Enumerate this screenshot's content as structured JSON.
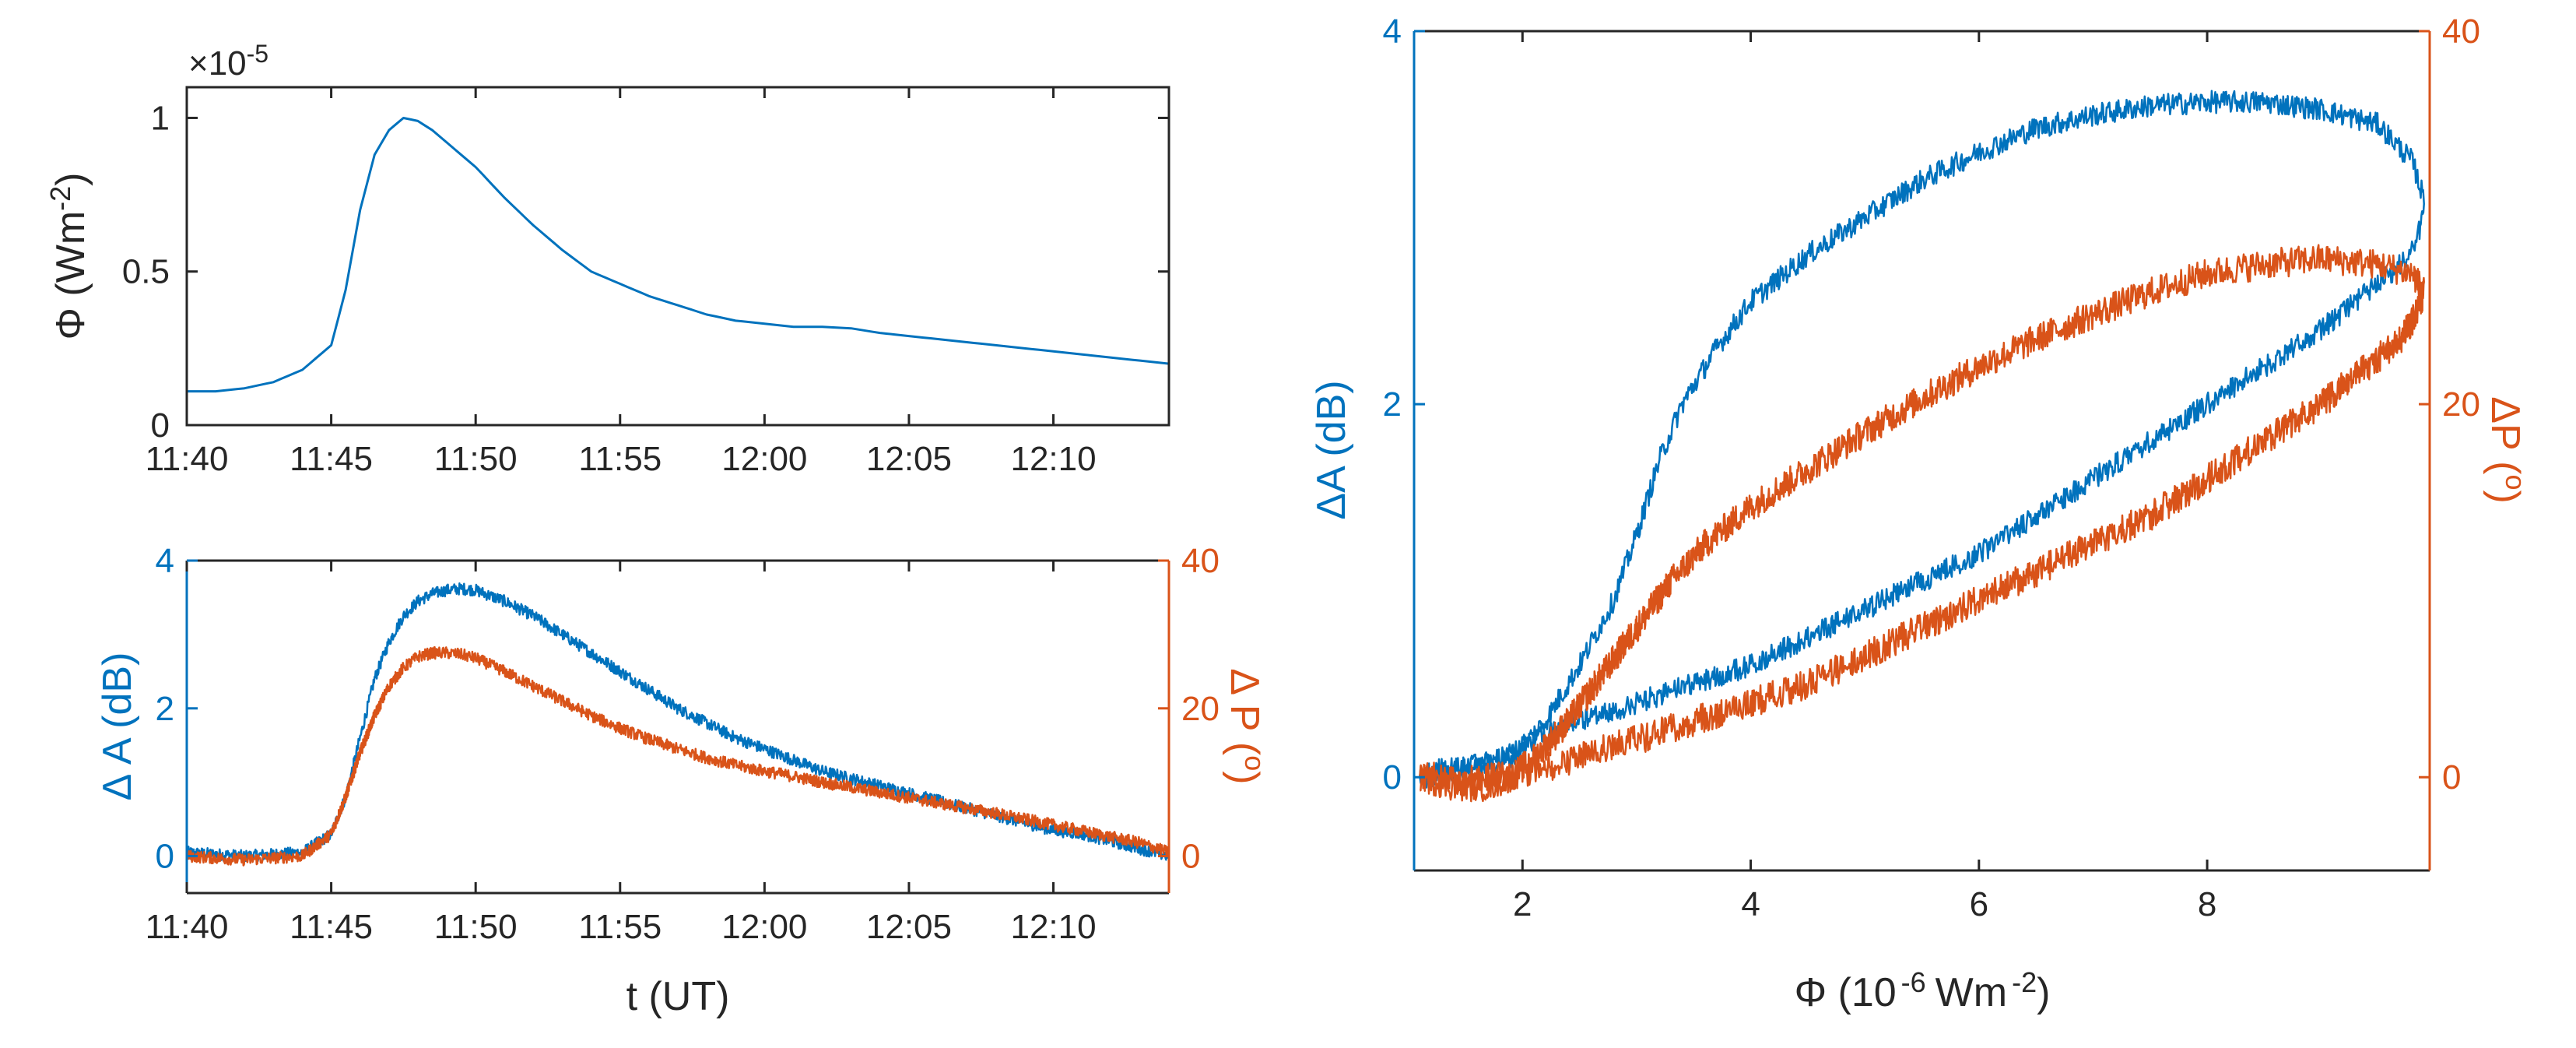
{
  "colors": {
    "blue": "#0072BD",
    "orange": "#D95319",
    "axis": "#262626"
  },
  "chart_data": [
    {
      "id": "flux-time",
      "type": "line",
      "xlabel": "",
      "ylabel_parts": [
        "Φ (Wm",
        "-2",
        ")"
      ],
      "exponent_label": [
        "×10",
        "-5"
      ],
      "x_tick_labels": [
        "11:40",
        "11:45",
        "11:50",
        "11:55",
        "12:00",
        "12:05",
        "12:10"
      ],
      "x_ticks_min": [
        0,
        5,
        10,
        15,
        20,
        25,
        30
      ],
      "xlim_min": [
        0,
        34
      ],
      "y_ticks": [
        0,
        0.5,
        1
      ],
      "y_tick_labels": [
        "0",
        "0.5",
        "1"
      ],
      "ylim": [
        0,
        1.1
      ],
      "grid": false,
      "series": [
        {
          "color": "blue",
          "x_min": [
            0,
            1,
            2,
            3,
            4,
            5,
            5.5,
            6,
            6.5,
            7,
            7.5,
            8,
            8.5,
            9,
            10,
            11,
            12,
            13,
            14,
            15,
            16,
            17,
            18,
            19,
            20,
            21,
            22,
            23,
            24,
            25,
            26,
            27,
            28,
            29,
            30,
            31,
            32,
            33,
            34
          ],
          "y": [
            0.11,
            0.11,
            0.12,
            0.14,
            0.18,
            0.26,
            0.44,
            0.7,
            0.88,
            0.96,
            1.0,
            0.99,
            0.96,
            0.92,
            0.84,
            0.74,
            0.65,
            0.57,
            0.5,
            0.46,
            0.42,
            0.39,
            0.36,
            0.34,
            0.33,
            0.32,
            0.32,
            0.315,
            0.3,
            0.29,
            0.28,
            0.27,
            0.26,
            0.25,
            0.24,
            0.23,
            0.22,
            0.21,
            0.2
          ]
        }
      ]
    },
    {
      "id": "diff-time",
      "type": "line",
      "xlabel": "t (UT)",
      "ylabel_left": "Δ A (dB)",
      "ylabel_right_parts": [
        "Δ P (",
        "o",
        ")"
      ],
      "x_tick_labels": [
        "11:40",
        "11:45",
        "11:50",
        "11:55",
        "12:00",
        "12:05",
        "12:10"
      ],
      "x_ticks_min": [
        0,
        5,
        10,
        15,
        20,
        25,
        30
      ],
      "xlim_min": [
        0,
        34
      ],
      "y_left_ticks": [
        0,
        2,
        4
      ],
      "y_left_tick_labels": [
        "0",
        "2",
        "4"
      ],
      "ylim_left": [
        -0.5,
        4
      ],
      "y_right_ticks": [
        0,
        20,
        40
      ],
      "y_right_tick_labels": [
        "0",
        "20",
        "40"
      ],
      "ylim_right": [
        -5,
        40
      ],
      "grid": false,
      "series": [
        {
          "axis": "left",
          "color": "blue",
          "noise": 0.08,
          "x_min": [
            0,
            2,
            4,
            5,
            5.5,
            6,
            6.5,
            7,
            7.5,
            8,
            8.5,
            9,
            9.5,
            10,
            11,
            12,
            13,
            14,
            15,
            16,
            17,
            18,
            19,
            20,
            21,
            22,
            23,
            24,
            25,
            26,
            27,
            28,
            29,
            30,
            31,
            32,
            33,
            34
          ],
          "y": [
            0.05,
            0.0,
            0.05,
            0.3,
            0.8,
            1.6,
            2.4,
            2.9,
            3.25,
            3.45,
            3.55,
            3.6,
            3.62,
            3.6,
            3.45,
            3.25,
            3.0,
            2.75,
            2.5,
            2.25,
            2.0,
            1.8,
            1.6,
            1.45,
            1.3,
            1.15,
            1.05,
            0.95,
            0.85,
            0.75,
            0.65,
            0.55,
            0.45,
            0.35,
            0.3,
            0.2,
            0.1,
            0.0
          ]
        },
        {
          "axis": "right",
          "color": "orange",
          "noise": 0.8,
          "x_min": [
            0,
            2,
            4,
            5,
            5.5,
            6,
            6.5,
            7,
            7.5,
            8,
            8.5,
            9,
            9.5,
            10,
            11,
            12,
            13,
            14,
            15,
            16,
            17,
            18,
            19,
            20,
            21,
            22,
            23,
            24,
            25,
            26,
            27,
            28,
            29,
            30,
            31,
            32,
            33,
            34
          ],
          "y": [
            0.0,
            -0.5,
            0.0,
            3.0,
            8.0,
            14.0,
            19.0,
            23.0,
            25.5,
            27.0,
            27.5,
            27.5,
            27.3,
            26.8,
            25.0,
            23.0,
            21.0,
            19.0,
            17.3,
            15.8,
            14.5,
            13.3,
            12.3,
            11.5,
            10.8,
            10.0,
            9.3,
            8.6,
            7.9,
            7.2,
            6.5,
            5.8,
            5.0,
            4.2,
            3.4,
            2.6,
            1.8,
            0.5
          ]
        }
      ]
    },
    {
      "id": "diff-flux",
      "type": "line",
      "xlabel_parts": [
        "Φ (10",
        "-6",
        "Wm",
        "-2",
        ")"
      ],
      "ylabel_left": "ΔA (dB)",
      "ylabel_right_parts": [
        "ΔP (",
        "o",
        ")"
      ],
      "x_ticks": [
        2,
        4,
        6,
        8
      ],
      "x_tick_labels": [
        "2",
        "4",
        "6",
        "8"
      ],
      "xlim": [
        1.05,
        9.95
      ],
      "y_left_ticks": [
        0,
        2,
        4
      ],
      "y_left_tick_labels": [
        "0",
        "2",
        "4"
      ],
      "ylim_left": [
        -0.5,
        4
      ],
      "y_right_ticks": [
        0,
        20,
        40
      ],
      "y_right_tick_labels": [
        "0",
        "20",
        "40"
      ],
      "ylim_right": [
        -5,
        40
      ],
      "grid": false,
      "series": [
        {
          "axis": "left",
          "color": "blue",
          "noise": 0.06,
          "x": [
            1.1,
            1.3,
            1.6,
            1.9,
            2.2,
            2.5,
            2.8,
            3.0,
            3.2,
            3.4,
            3.7,
            4.0,
            4.5,
            5.0,
            5.5,
            6.0,
            6.5,
            7.0,
            7.5,
            8.0,
            8.5,
            9.0,
            9.5,
            9.8,
            9.9,
            9.85,
            9.7,
            9.4,
            9.0,
            8.5,
            8.0,
            7.5,
            7.0,
            6.5,
            6.0,
            5.5,
            5.0,
            4.5,
            4.0,
            3.5,
            3.0,
            2.5,
            2.1,
            1.8,
            1.5,
            1.2,
            1.1
          ],
          "y": [
            0.0,
            0.05,
            0.05,
            0.1,
            0.3,
            0.6,
            0.95,
            1.3,
            1.7,
            2.0,
            2.3,
            2.55,
            2.8,
            3.0,
            3.2,
            3.35,
            3.48,
            3.55,
            3.6,
            3.62,
            3.62,
            3.58,
            3.5,
            3.3,
            3.1,
            2.9,
            2.75,
            2.6,
            2.4,
            2.2,
            2.0,
            1.8,
            1.6,
            1.4,
            1.2,
            1.05,
            0.9,
            0.75,
            0.6,
            0.5,
            0.4,
            0.3,
            0.2,
            0.1,
            0.05,
            0.0,
            0.0
          ]
        },
        {
          "axis": "right",
          "color": "orange",
          "noise": 0.8,
          "x": [
            1.1,
            1.4,
            1.7,
            1.9,
            2.1,
            2.4,
            2.7,
            3.0,
            3.3,
            3.6,
            4.0,
            4.5,
            5.0,
            5.5,
            6.0,
            6.5,
            7.0,
            7.5,
            8.0,
            8.5,
            9.0,
            9.5,
            9.8,
            9.9,
            9.85,
            9.7,
            9.4,
            9.0,
            8.5,
            8.0,
            7.5,
            7.0,
            6.5,
            6.0,
            5.5,
            5.0,
            4.5,
            4.0,
            3.5,
            3.0,
            2.6,
            2.2,
            1.8,
            1.5,
            1.2,
            1.1
          ],
          "y": [
            0.0,
            -0.5,
            -0.5,
            0.0,
            1.0,
            3.0,
            5.5,
            8.0,
            10.5,
            12.5,
            14.5,
            16.5,
            18.5,
            20.3,
            22.0,
            23.5,
            24.8,
            26.0,
            27.0,
            27.5,
            27.8,
            27.5,
            27.0,
            26.0,
            25.0,
            23.5,
            22.0,
            20.0,
            18.0,
            16.0,
            14.0,
            12.5,
            11.0,
            9.5,
            8.0,
            6.5,
            5.0,
            4.0,
            3.0,
            2.0,
            1.3,
            0.5,
            0.0,
            -0.2,
            0.0,
            0.0
          ]
        }
      ]
    }
  ]
}
